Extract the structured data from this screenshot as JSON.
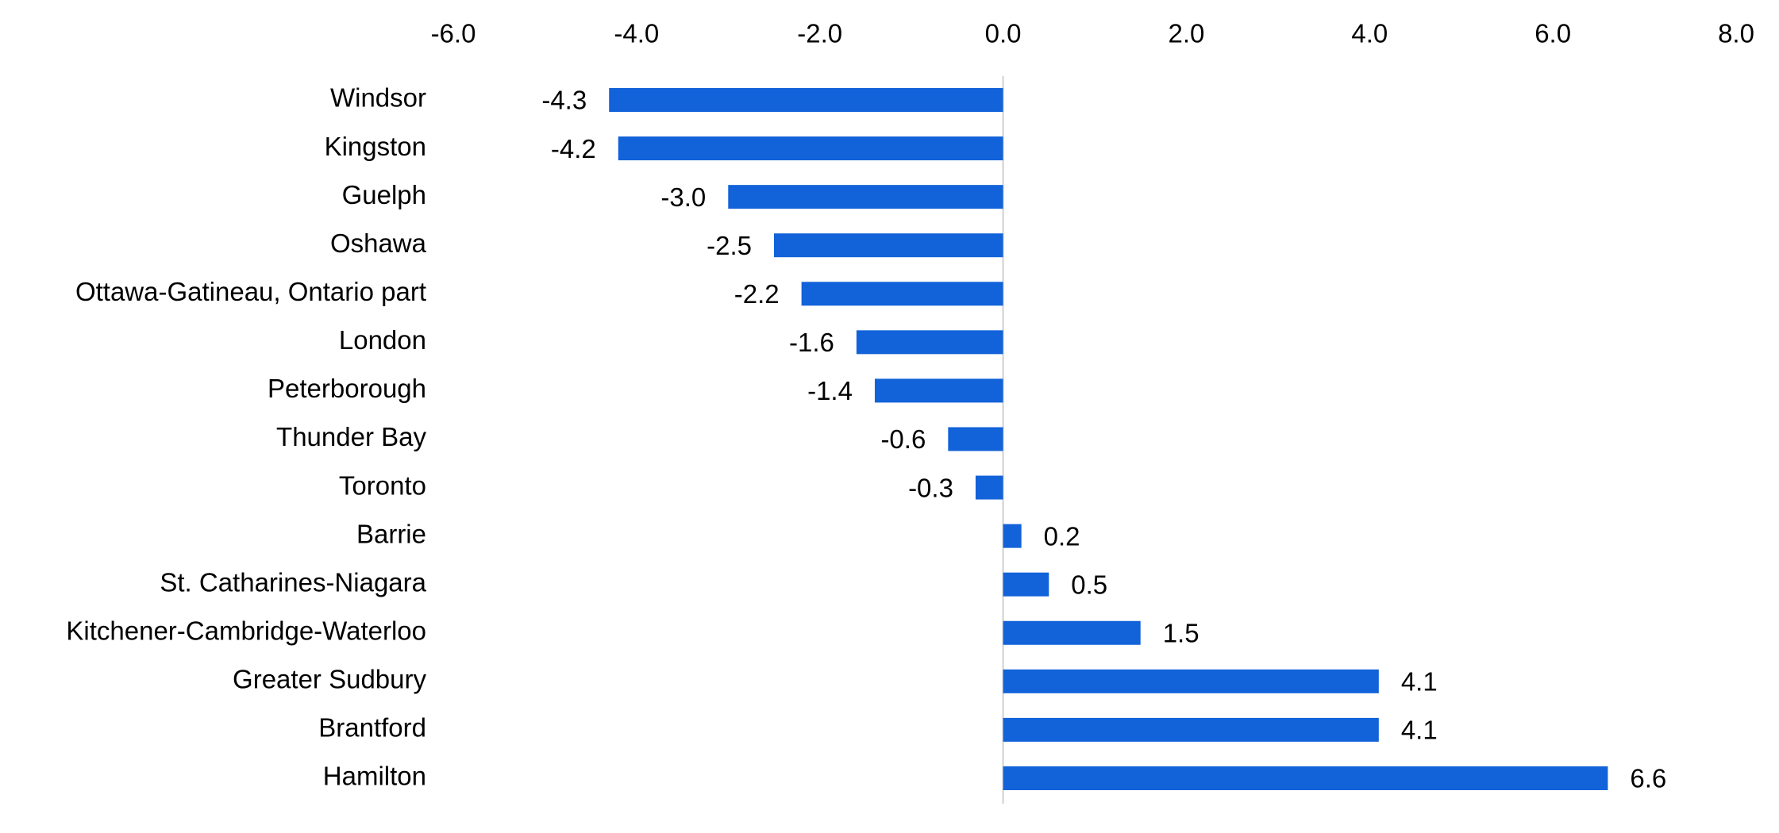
{
  "chart_data": {
    "type": "bar",
    "orientation": "horizontal",
    "title": "",
    "xlabel": "",
    "ylabel": "",
    "xlim": [
      -6.0,
      8.0
    ],
    "x_ticks": [
      -6.0,
      -4.0,
      -2.0,
      0.0,
      2.0,
      4.0,
      6.0,
      8.0
    ],
    "x_tick_labels": [
      "-6.0",
      "-4.0",
      "-2.0",
      "0.0",
      "2.0",
      "4.0",
      "6.0",
      "8.0"
    ],
    "x_axis_position": "top",
    "grid": false,
    "legend": "none",
    "categories": [
      "Windsor",
      "Kingston",
      "Guelph",
      "Oshawa",
      "Ottawa-Gatineau, Ontario part",
      "London",
      "Peterborough",
      "Thunder Bay",
      "Toronto",
      "Barrie",
      "St. Catharines-Niagara",
      "Kitchener-Cambridge-Waterloo",
      "Greater Sudbury",
      "Brantford",
      "Hamilton"
    ],
    "values": [
      -4.3,
      -4.2,
      -3.0,
      -2.5,
      -2.2,
      -1.6,
      -1.4,
      -0.6,
      -0.3,
      0.2,
      0.5,
      1.5,
      4.1,
      4.1,
      6.6
    ],
    "data_labels": [
      "-4.3",
      "-4.2",
      "-3.0",
      "-2.5",
      "-2.2",
      "-1.6",
      "-1.4",
      "-0.6",
      "-0.3",
      "0.2",
      "0.5",
      "1.5",
      "4.1",
      "4.1",
      "6.6"
    ],
    "bar_color": "#1262D9",
    "zero_line_color": "#D0D0D0"
  }
}
